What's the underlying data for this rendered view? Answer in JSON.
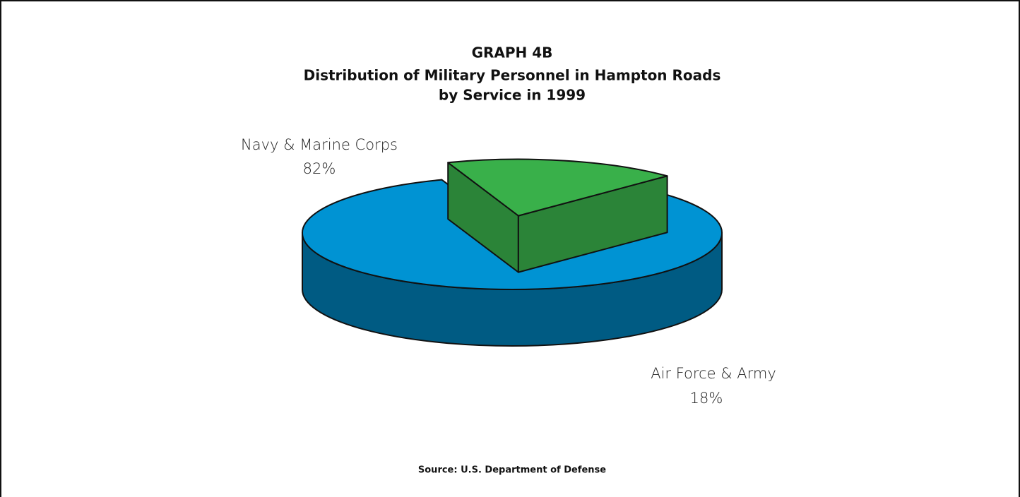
{
  "chart_data": {
    "type": "pie",
    "title": "GRAPH 4B",
    "subtitle": [
      "Distribution of Military Personnel in Hampton Roads",
      "by Service in 1999"
    ],
    "categories": [
      "Navy & Marine Corps",
      "Air Force & Army"
    ],
    "values": [
      82,
      18
    ],
    "value_labels": [
      "82%",
      "18%"
    ],
    "colors": [
      "#0093d3",
      "#39b04a"
    ],
    "source": "Source: U.S. Department of Defense"
  }
}
